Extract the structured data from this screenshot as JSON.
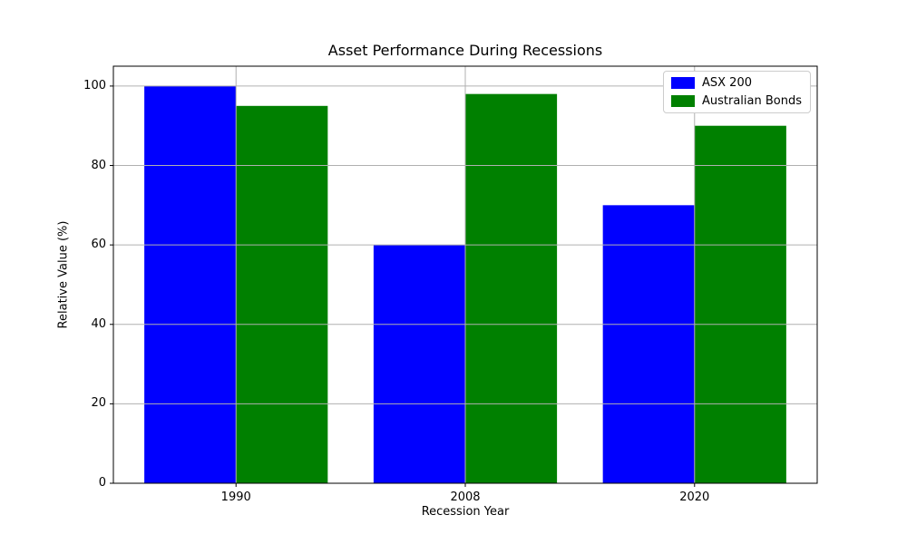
{
  "chart_data": {
    "type": "bar",
    "title": "Asset Performance During Recessions",
    "xlabel": "Recession Year",
    "ylabel": "Relative Value (%)",
    "categories": [
      "1990",
      "2008",
      "2020"
    ],
    "series": [
      {
        "name": "ASX 200",
        "color": "#0000ff",
        "values": [
          100,
          60,
          70
        ]
      },
      {
        "name": "Australian Bonds",
        "color": "#008000",
        "values": [
          95,
          98,
          90
        ]
      }
    ],
    "ylim": [
      0,
      105
    ],
    "yticks": [
      0,
      20,
      40,
      60,
      80,
      100
    ],
    "grid": true,
    "grid_color": "#b0b0b0",
    "axis_color": "#000000",
    "background": "#ffffff",
    "legend_position": "upper right"
  }
}
